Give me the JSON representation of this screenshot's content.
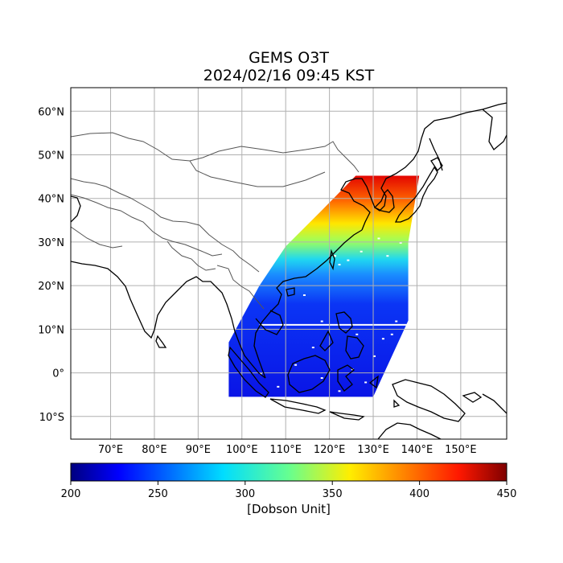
{
  "title_line1": "GEMS O3T",
  "title_line2": "2024/02/16 09:45 KST",
  "map": {
    "lon_range": [
      60.9,
      160.5
    ],
    "lat_range": [
      -15.2,
      65.4
    ],
    "lon_ticks": [
      {
        "v": 70,
        "label": "70°E"
      },
      {
        "v": 80,
        "label": "80°E"
      },
      {
        "v": 90,
        "label": "90°E"
      },
      {
        "v": 100,
        "label": "100°E"
      },
      {
        "v": 110,
        "label": "110°E"
      },
      {
        "v": 120,
        "label": "120°E"
      },
      {
        "v": 130,
        "label": "130°E"
      },
      {
        "v": 140,
        "label": "140°E"
      },
      {
        "v": 150,
        "label": "150°E"
      }
    ],
    "lat_ticks": [
      {
        "v": 60,
        "label": "60°N"
      },
      {
        "v": 50,
        "label": "50°N"
      },
      {
        "v": 40,
        "label": "40°N"
      },
      {
        "v": 30,
        "label": "30°N"
      },
      {
        "v": 20,
        "label": "20°N"
      },
      {
        "v": 10,
        "label": "10°N"
      },
      {
        "v": 0,
        "label": "0°"
      },
      {
        "v": -10,
        "label": "10°S"
      }
    ],
    "grid": true
  },
  "colorbar": {
    "min": 200,
    "max": 450,
    "ticks": [
      "200",
      "250",
      "300",
      "350",
      "400",
      "450"
    ],
    "label": "[Dobson Unit]",
    "colormap": "jet"
  },
  "chart_data": {
    "type": "heatmap",
    "title": "GEMS O3T\n2024/02/16 09:45 KST",
    "variable": "O3T",
    "units": "[Dobson Unit]",
    "value_range": [
      200,
      450
    ],
    "swath_outline_lonlat": [
      [
        97,
        -5.5
      ],
      [
        97,
        7
      ],
      [
        104,
        20
      ],
      [
        110,
        29
      ],
      [
        118,
        37
      ],
      [
        126,
        45.2
      ],
      [
        140.5,
        45.2
      ],
      [
        139.5,
        39
      ],
      [
        138,
        30
      ],
      [
        138,
        12
      ],
      [
        130,
        -5.5
      ]
    ],
    "zonal_profile": [
      {
        "lat": -5,
        "value": 238
      },
      {
        "lat": 0,
        "value": 240
      },
      {
        "lat": 10,
        "value": 245
      },
      {
        "lat": 20,
        "value": 258
      },
      {
        "lat": 25,
        "value": 268
      },
      {
        "lat": 28,
        "value": 290
      },
      {
        "lat": 30,
        "value": 310
      },
      {
        "lat": 33,
        "value": 340
      },
      {
        "lat": 36,
        "value": 370
      },
      {
        "lat": 39,
        "value": 395
      },
      {
        "lat": 42,
        "value": 415
      },
      {
        "lat": 45,
        "value": 425
      }
    ]
  }
}
